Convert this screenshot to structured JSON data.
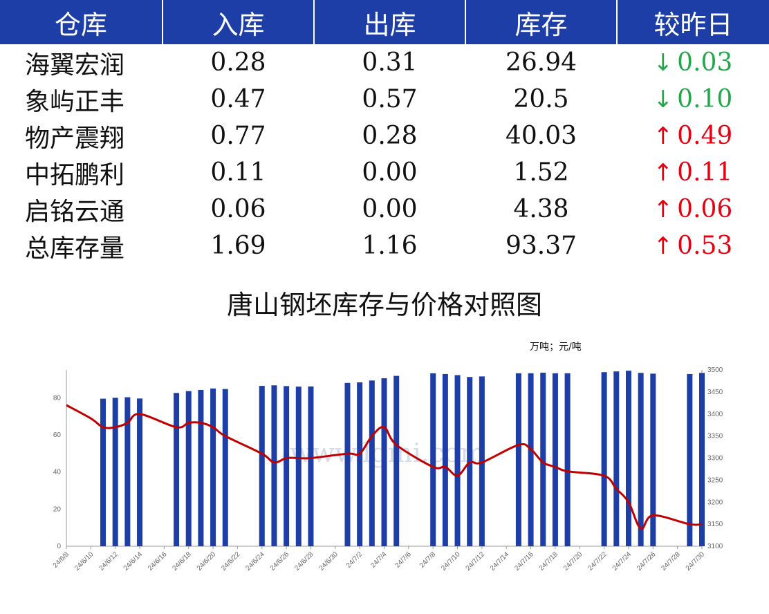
{
  "table": {
    "headers": [
      "仓库",
      "入库",
      "出库",
      "库存",
      "较昨日"
    ],
    "rows": [
      {
        "name": "海翼宏润",
        "in": "0.28",
        "out": "0.31",
        "stock": "26.94",
        "dir": "down",
        "arrow": "↓",
        "chg": "0.03"
      },
      {
        "name": "象屿正丰",
        "in": "0.47",
        "out": "0.57",
        "stock": "20.5",
        "dir": "down",
        "arrow": "↓",
        "chg": "0.10"
      },
      {
        "name": "物产震翔",
        "in": "0.77",
        "out": "0.28",
        "stock": "40.03",
        "dir": "up",
        "arrow": "↑",
        "chg": "0.49"
      },
      {
        "name": "中拓鹏利",
        "in": "0.11",
        "out": "0.00",
        "stock": "1.52",
        "dir": "up",
        "arrow": "↑",
        "chg": "0.11"
      },
      {
        "name": "启铭云通",
        "in": "0.06",
        "out": "0.00",
        "stock": "4.38",
        "dir": "up",
        "arrow": "↑",
        "chg": "0.06"
      },
      {
        "name": "总库存量",
        "in": "1.69",
        "out": "1.16",
        "stock": "93.37",
        "dir": "up",
        "arrow": "↑",
        "chg": "0.53"
      }
    ]
  },
  "colors": {
    "header_bg": "#1e3ea7",
    "bar": "#1e3ea7",
    "line": "#c00000",
    "down": "#22a84b",
    "up": "#e60012"
  },
  "chart_data": {
    "type": "bar",
    "title": "唐山钢坯库存与价格对照图",
    "units": "万吨；元/吨",
    "watermark": "www.lgmi.com",
    "xlim": [
      "2024-06-08",
      "2024-07-30"
    ],
    "x_tick_labels": [
      "24/6/8",
      "24/6/10",
      "24/6/12",
      "24/6/14",
      "24/6/16",
      "24/6/18",
      "24/6/20",
      "24/6/22",
      "24/6/24",
      "24/6/26",
      "24/6/28",
      "24/6/30",
      "24/7/2",
      "24/7/4",
      "24/7/6",
      "24/7/8",
      "24/7/10",
      "24/7/12",
      "24/7/14",
      "24/7/16",
      "24/7/18",
      "24/7/20",
      "24/7/22",
      "24/7/24",
      "24/7/26",
      "24/7/28",
      "24/7/30"
    ],
    "y_left": {
      "ylim": [
        0,
        95
      ],
      "ticks": [
        0,
        20,
        40,
        60,
        80
      ]
    },
    "y_right": {
      "ylim": [
        3100,
        3500
      ],
      "ticks": [
        3100,
        3150,
        3200,
        3250,
        3300,
        3350,
        3400,
        3450,
        3500
      ]
    },
    "series": [
      {
        "kind": "bar",
        "axis": "left",
        "points": [
          [
            "2024-06-11",
            79.5
          ],
          [
            "2024-06-12",
            80
          ],
          [
            "2024-06-13",
            80.3
          ],
          [
            "2024-06-14",
            79.6
          ],
          [
            "2024-06-17",
            82.6
          ],
          [
            "2024-06-18",
            83.6
          ],
          [
            "2024-06-19",
            84.2
          ],
          [
            "2024-06-20",
            85
          ],
          [
            "2024-06-21",
            84.7
          ],
          [
            "2024-06-24",
            86.4
          ],
          [
            "2024-06-25",
            86.7
          ],
          [
            "2024-06-26",
            86.3
          ],
          [
            "2024-06-27",
            86
          ],
          [
            "2024-06-28",
            86.1
          ],
          [
            "2024-07-01",
            88
          ],
          [
            "2024-07-02",
            88.3
          ],
          [
            "2024-07-03",
            89.3
          ],
          [
            "2024-07-04",
            90.5
          ],
          [
            "2024-07-05",
            91.8
          ],
          [
            "2024-07-08",
            93.2
          ],
          [
            "2024-07-09",
            92.8
          ],
          [
            "2024-07-10",
            92.2
          ],
          [
            "2024-07-11",
            91.2
          ],
          [
            "2024-07-12",
            91.5
          ],
          [
            "2024-07-15",
            93.2
          ],
          [
            "2024-07-16",
            93.2
          ],
          [
            "2024-07-17",
            93.5
          ],
          [
            "2024-07-18",
            93.2
          ],
          [
            "2024-07-19",
            93.2
          ],
          [
            "2024-07-22",
            93.8
          ],
          [
            "2024-07-23",
            94.2
          ],
          [
            "2024-07-24",
            94.6
          ],
          [
            "2024-07-25",
            93.4
          ],
          [
            "2024-07-26",
            93
          ],
          [
            "2024-07-29",
            92.8
          ],
          [
            "2024-07-30",
            93.4
          ]
        ]
      },
      {
        "kind": "line",
        "axis": "right",
        "points": [
          [
            "2024-06-08",
            3420
          ],
          [
            "2024-06-10",
            3390
          ],
          [
            "2024-06-11",
            3370
          ],
          [
            "2024-06-12",
            3370
          ],
          [
            "2024-06-13",
            3380
          ],
          [
            "2024-06-14",
            3400
          ],
          [
            "2024-06-17",
            3370
          ],
          [
            "2024-06-18",
            3380
          ],
          [
            "2024-06-19",
            3380
          ],
          [
            "2024-06-20",
            3370
          ],
          [
            "2024-06-21",
            3350
          ],
          [
            "2024-06-24",
            3310
          ],
          [
            "2024-06-25",
            3290
          ],
          [
            "2024-06-26",
            3300
          ],
          [
            "2024-06-27",
            3300
          ],
          [
            "2024-06-28",
            3300
          ],
          [
            "2024-07-01",
            3310
          ],
          [
            "2024-07-02",
            3310
          ],
          [
            "2024-07-03",
            3350
          ],
          [
            "2024-07-04",
            3370
          ],
          [
            "2024-07-05",
            3330
          ],
          [
            "2024-07-08",
            3280
          ],
          [
            "2024-07-09",
            3280
          ],
          [
            "2024-07-10",
            3260
          ],
          [
            "2024-07-11",
            3290
          ],
          [
            "2024-07-12",
            3290
          ],
          [
            "2024-07-15",
            3330
          ],
          [
            "2024-07-16",
            3320
          ],
          [
            "2024-07-17",
            3290
          ],
          [
            "2024-07-18",
            3280
          ],
          [
            "2024-07-19",
            3270
          ],
          [
            "2024-07-22",
            3260
          ],
          [
            "2024-07-23",
            3230
          ],
          [
            "2024-07-24",
            3200
          ],
          [
            "2024-07-25",
            3140
          ],
          [
            "2024-07-26",
            3170
          ],
          [
            "2024-07-29",
            3150
          ],
          [
            "2024-07-30",
            3150
          ]
        ]
      }
    ]
  }
}
